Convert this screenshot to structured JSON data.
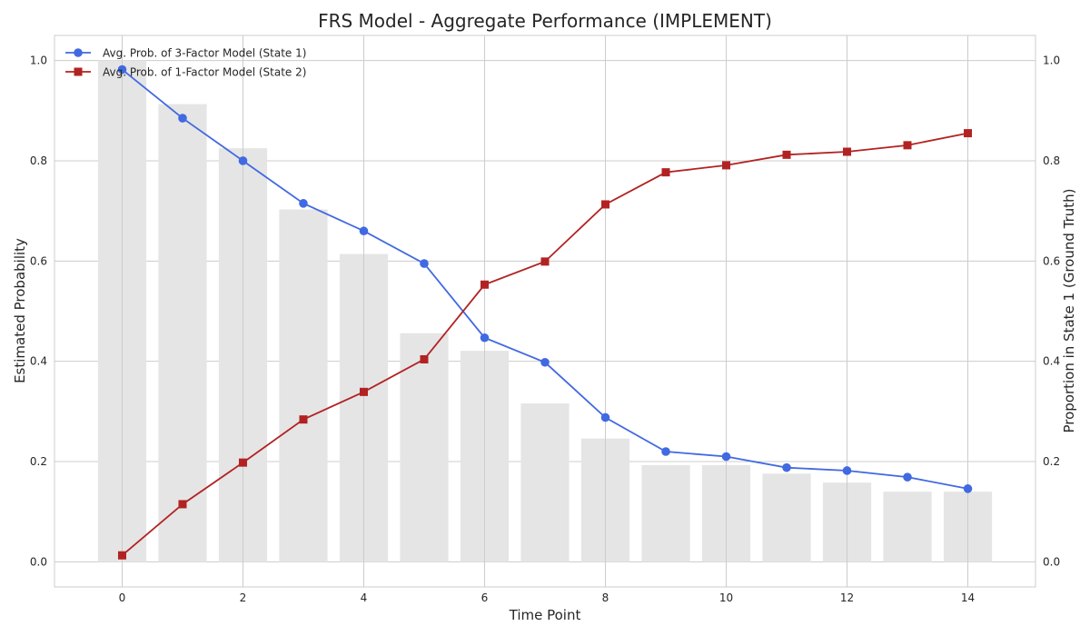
{
  "chart_data": {
    "type": "line",
    "title": "FRS Model - Aggregate Performance (IMPLEMENT)",
    "xlabel": "Time Point",
    "ylabel_left": "Estimated Probability",
    "ylabel_right": "Proportion in State 1 (Ground Truth)",
    "x": [
      0,
      1,
      2,
      3,
      4,
      5,
      6,
      7,
      8,
      9,
      10,
      11,
      12,
      13,
      14
    ],
    "xlim": [
      -1.12,
      15.12
    ],
    "ylim": [
      -0.05,
      1.05
    ],
    "xticks": [
      0,
      2,
      4,
      6,
      8,
      10,
      12,
      14
    ],
    "yticks": [
      0.0,
      0.2,
      0.4,
      0.6,
      0.8,
      1.0
    ],
    "grid": true,
    "legend_position": "top-left",
    "bars": {
      "axis": "right",
      "color": "#e5e5e5",
      "values": [
        1.0,
        0.913,
        0.825,
        0.703,
        0.614,
        0.456,
        0.421,
        0.316,
        0.246,
        0.193,
        0.193,
        0.176,
        0.158,
        0.14,
        0.14
      ]
    },
    "series": [
      {
        "name": "Avg. Prob. of 3-Factor Model (State 1)",
        "color": "#4169e1",
        "marker": "circle",
        "values": [
          0.982,
          0.885,
          0.8,
          0.715,
          0.66,
          0.595,
          0.447,
          0.398,
          0.288,
          0.22,
          0.21,
          0.188,
          0.182,
          0.169,
          0.146
        ]
      },
      {
        "name": "Avg. Prob. of 1-Factor Model (State 2)",
        "color": "#b22222",
        "marker": "square",
        "values": [
          0.013,
          0.115,
          0.198,
          0.284,
          0.339,
          0.404,
          0.553,
          0.599,
          0.713,
          0.777,
          0.791,
          0.812,
          0.818,
          0.831,
          0.855
        ]
      }
    ]
  }
}
